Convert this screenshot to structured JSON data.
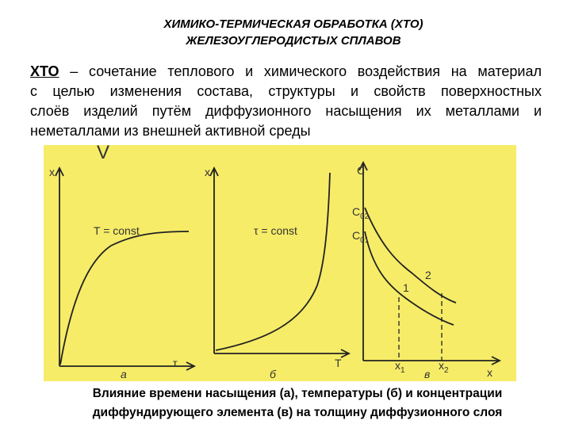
{
  "header": {
    "title_lines": [
      "ХИМИКО-ТЕРМИЧЕСКАЯ ОБРАБОТКА (ХТО)",
      "ЖЕЛЕЗОУГЛЕРОДИСТЫХ СПЛАВОВ"
    ]
  },
  "definition": {
    "term": "ХТО",
    "lines": [
      " – сочетание теплового и химического воздействия на материал",
      "с целью изменения состава, структуры и свойств поверхностных",
      "слоёв изделий путём диффузионного насыщения их металлами и",
      "неметаллами из внешней активной среды"
    ]
  },
  "figure": {
    "mark": "V",
    "panels": [
      {
        "y_axis": "x",
        "x_axis": "τ",
        "condition": "T = const",
        "letter": "а"
      },
      {
        "y_axis": "x",
        "x_axis": "T",
        "condition": "τ = const",
        "letter": "б"
      },
      {
        "y_axis": "C",
        "x_axis": "x",
        "letter": "в",
        "levels": [
          {
            "symbol": "C",
            "subscript": "02"
          },
          {
            "symbol": "C",
            "subscript": "01"
          }
        ],
        "curves": [
          "1",
          "2"
        ],
        "points": [
          {
            "symbol": "x",
            "subscript": "1"
          },
          {
            "symbol": "x",
            "subscript": "2"
          }
        ]
      }
    ]
  },
  "caption": {
    "lines": [
      "Влияние времени насыщения (а), температуры (б) и концентрации",
      "диффундирующего элемента (в) на толщину диффузионного слоя"
    ]
  }
}
